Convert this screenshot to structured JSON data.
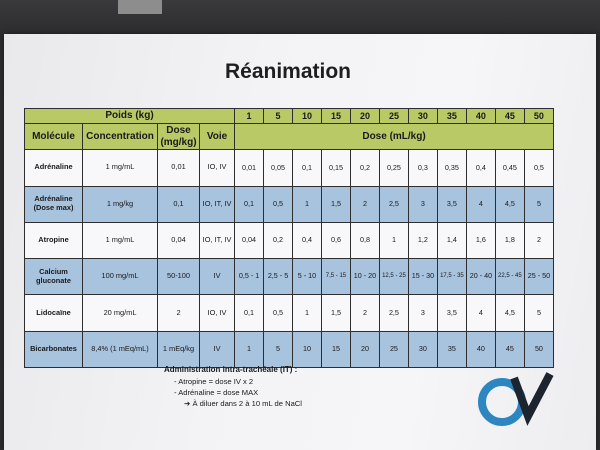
{
  "title": "Réanimation",
  "table": {
    "poids_label": "Poids (kg)",
    "weights": [
      "1",
      "5",
      "10",
      "15",
      "20",
      "25",
      "30",
      "35",
      "40",
      "45",
      "50"
    ],
    "headers": {
      "molecule": "Molécule",
      "concentration": "Concentration",
      "dose": "Dose (mg/kg)",
      "voie": "Voie",
      "dose_ml": "Dose (mL/kg)"
    },
    "rows": [
      {
        "molecule": "Adrénaline",
        "concentration": "1 mg/mL",
        "dose": "0,01",
        "voie": "IO, IV",
        "values": [
          "0,01",
          "0,05",
          "0,1",
          "0,15",
          "0,2",
          "0,25",
          "0,3",
          "0,35",
          "0,4",
          "0,45",
          "0,5"
        ]
      },
      {
        "molecule": "Adrénaline (Dose max)",
        "concentration": "1 mg/kg",
        "dose": "0,1",
        "voie": "IO, IT, IV",
        "values": [
          "0,1",
          "0,5",
          "1",
          "1,5",
          "2",
          "2,5",
          "3",
          "3,5",
          "4",
          "4,5",
          "5"
        ]
      },
      {
        "molecule": "Atropine",
        "concentration": "1 mg/mL",
        "dose": "0,04",
        "voie": "IO, IT, IV",
        "values": [
          "0,04",
          "0,2",
          "0,4",
          "0,6",
          "0,8",
          "1",
          "1,2",
          "1,4",
          "1,6",
          "1,8",
          "2"
        ]
      },
      {
        "molecule": "Calcium gluconate",
        "concentration": "100 mg/mL",
        "dose": "50-100",
        "voie": "IV",
        "values": [
          "0,5 - 1",
          "2,5 - 5",
          "5 - 10",
          "7,5 - 15",
          "10 - 20",
          "12,5 - 25",
          "15 - 30",
          "17,5 - 35",
          "20 - 40",
          "22,5 - 45",
          "25 - 50"
        ]
      },
      {
        "molecule": "Lidocaïne",
        "concentration": "20 mg/mL",
        "dose": "2",
        "voie": "IO, IV",
        "values": [
          "0,1",
          "0,5",
          "1",
          "1,5",
          "2",
          "2,5",
          "3",
          "3,5",
          "4",
          "4,5",
          "5"
        ]
      },
      {
        "molecule": "Bicarbonates",
        "concentration": "8,4% (1 mEq/mL)",
        "dose": "1 mEq/kg",
        "voie": "IV",
        "values": [
          "1",
          "5",
          "10",
          "15",
          "20",
          "25",
          "30",
          "35",
          "40",
          "45",
          "50"
        ]
      }
    ]
  },
  "note": {
    "heading": "Administration intra-trachéale (IT) :",
    "line1": "- Atropine = dose IV x 2",
    "line2": "- Adrénaline = dose MAX",
    "arrow": "➔",
    "line3": "À diluer dans 2 à 10 mL de NaCl"
  },
  "colors": {
    "header_green": "#b9c965",
    "row_blue": "#a8c3de",
    "logo_blue": "#2e86c1",
    "logo_dark": "#1c2430"
  },
  "icons": {
    "logo": "ov-logo"
  }
}
